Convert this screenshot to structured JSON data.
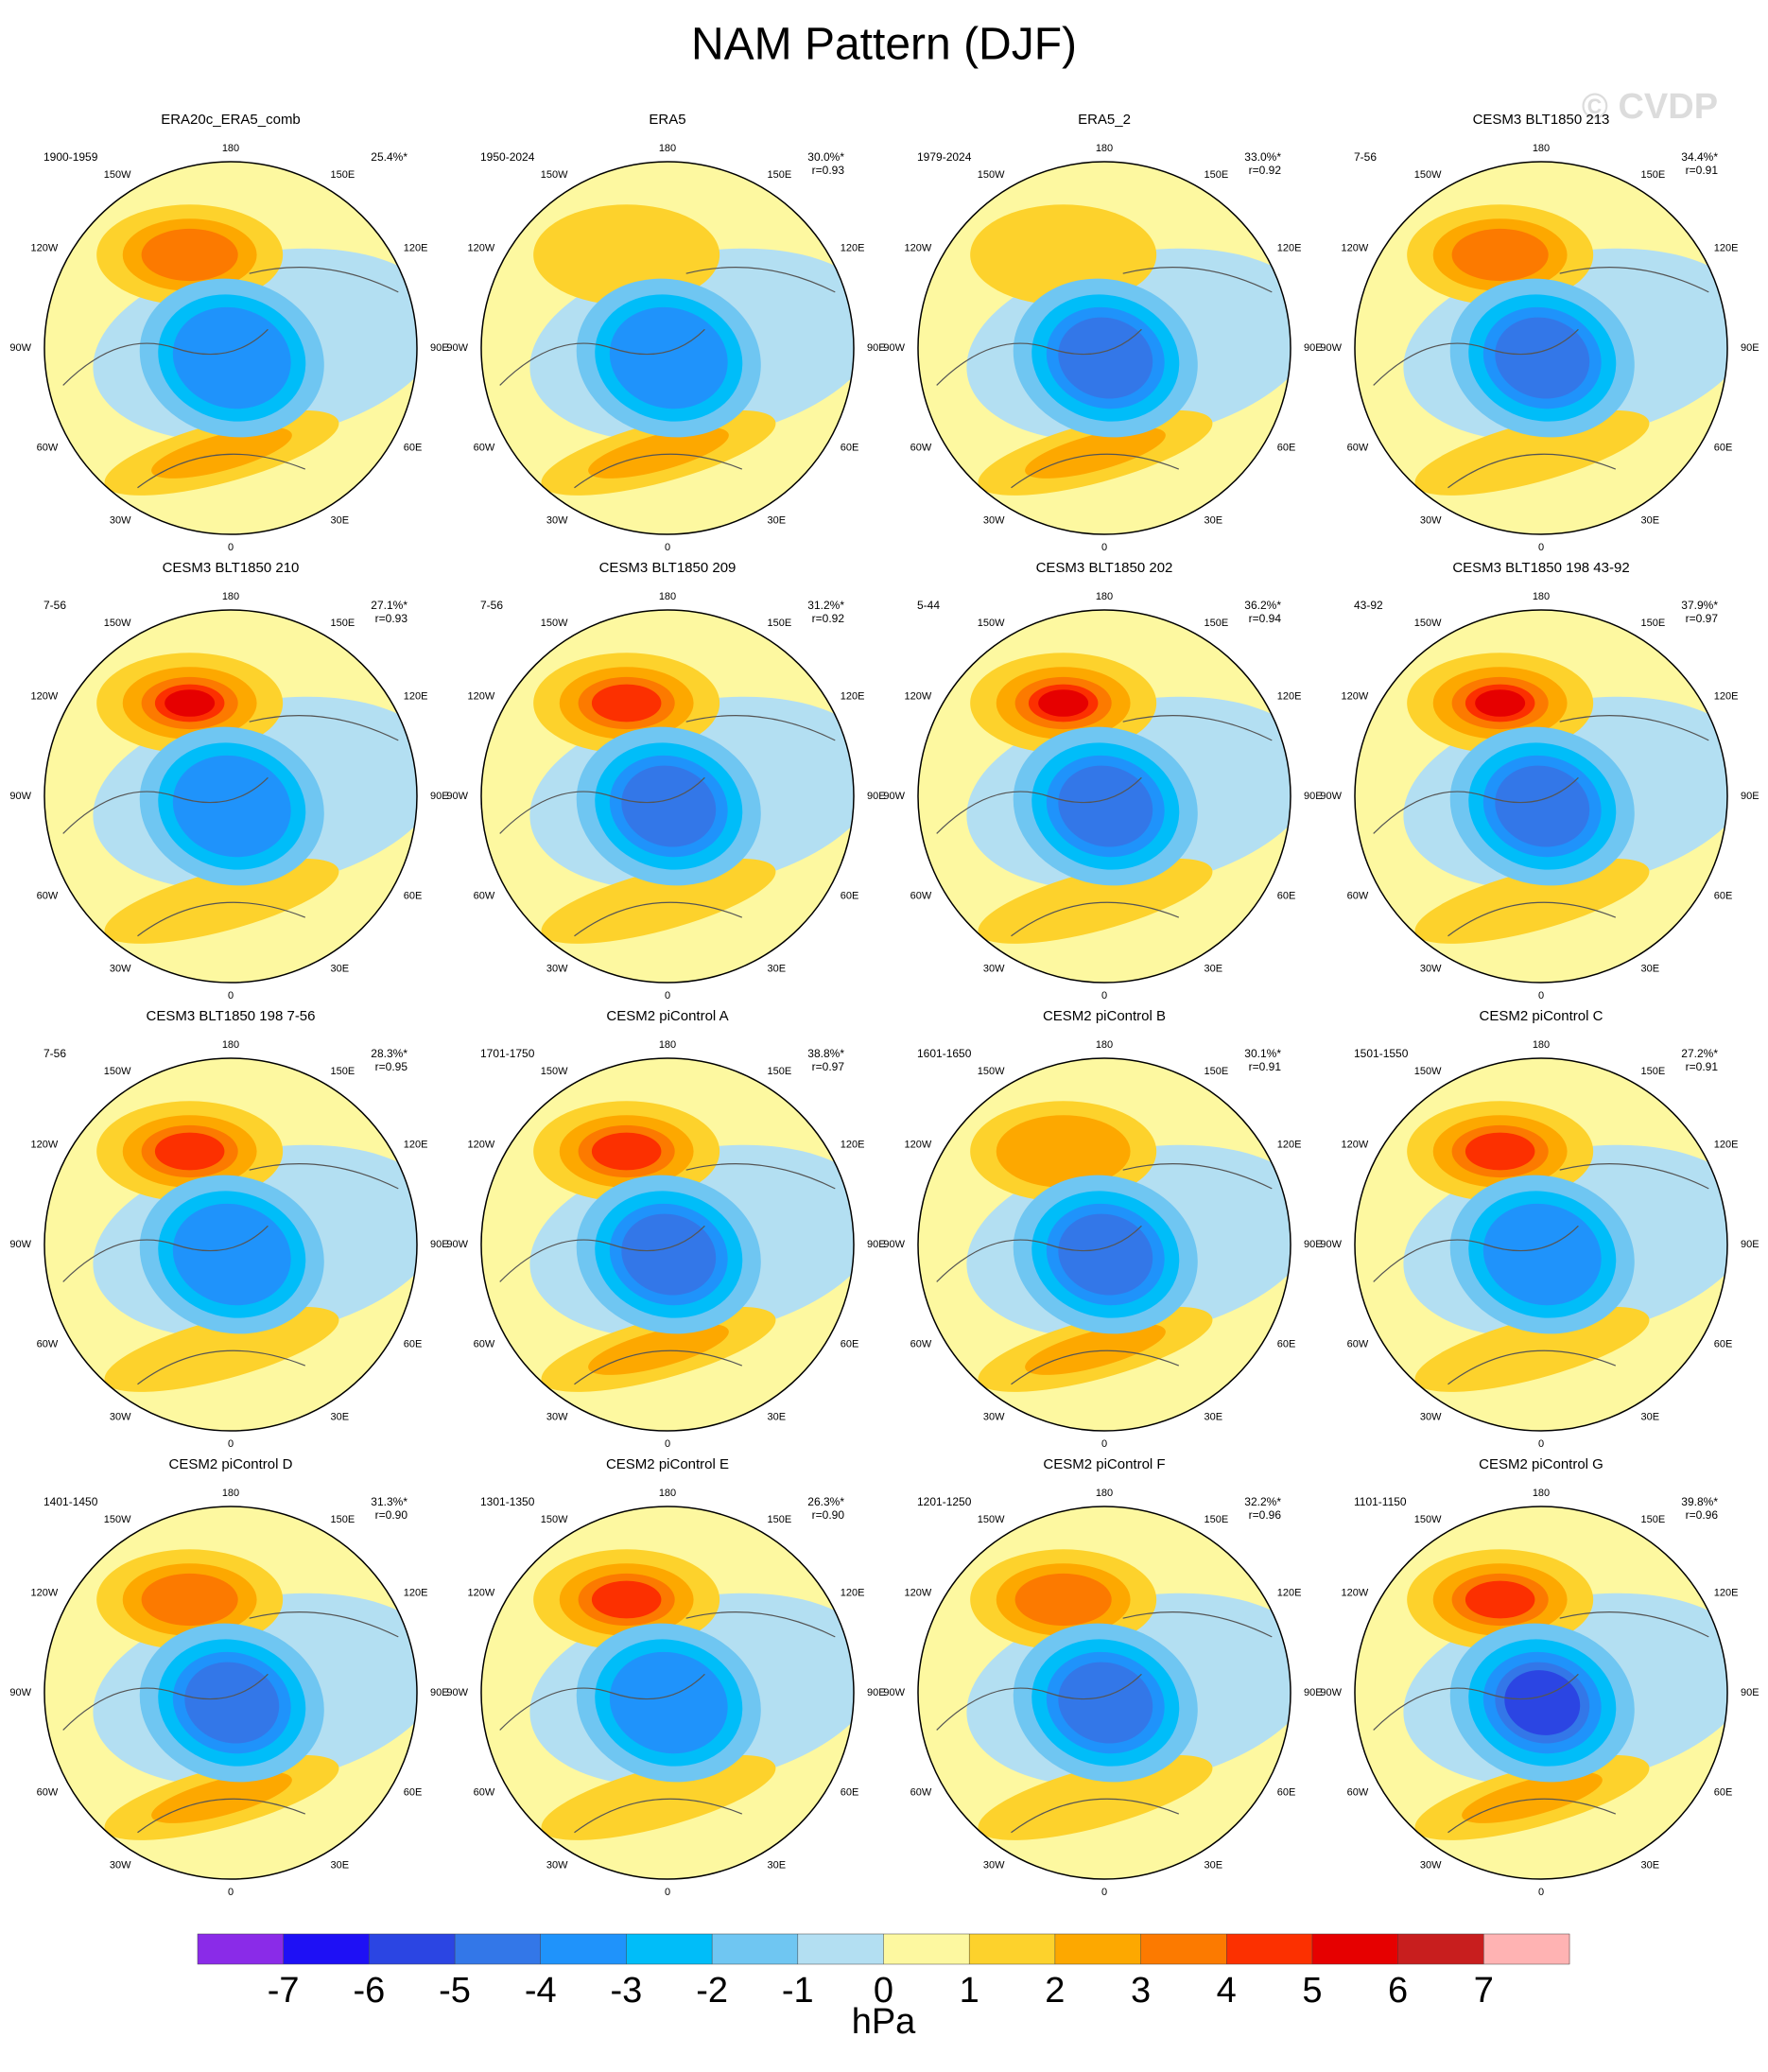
{
  "title": "NAM Pattern (DJF)",
  "watermark": "© CVDP",
  "lon_labels": [
    "180",
    "150E",
    "120E",
    "90E",
    "60E",
    "30E",
    "0",
    "30W",
    "60W",
    "90W",
    "120W",
    "150W"
  ],
  "panels": [
    {
      "title": "ERA20c_ERA5_comb",
      "period": "1900-1959",
      "pct": "25.4%*"
    },
    {
      "title": "ERA5",
      "period": "1950-2024",
      "pct": "30.0%*",
      "r": "r=0.93"
    },
    {
      "title": "ERA5_2",
      "period": "1979-2024",
      "pct": "33.0%*",
      "r": "r=0.92"
    },
    {
      "title": "CESM3 BLT1850 213",
      "period": "7-56",
      "pct": "34.4%*",
      "r": "r=0.91"
    },
    {
      "title": "CESM3 BLT1850 210",
      "period": "7-56",
      "pct": "27.1%*",
      "r": "r=0.93"
    },
    {
      "title": "CESM3 BLT1850 209",
      "period": "7-56",
      "pct": "31.2%*",
      "r": "r=0.92"
    },
    {
      "title": "CESM3 BLT1850 202",
      "period": "5-44",
      "pct": "36.2%*",
      "r": "r=0.94"
    },
    {
      "title": "CESM3 BLT1850 198 43-92",
      "period": "43-92",
      "pct": "37.9%*",
      "r": "r=0.97"
    },
    {
      "title": "CESM3 BLT1850 198 7-56",
      "period": "7-56",
      "pct": "28.3%*",
      "r": "r=0.95"
    },
    {
      "title": "CESM2 piControl A",
      "period": "1701-1750",
      "pct": "38.8%*",
      "r": "r=0.97"
    },
    {
      "title": "CESM2 piControl B",
      "period": "1601-1650",
      "pct": "30.1%*",
      "r": "r=0.91"
    },
    {
      "title": "CESM2 piControl C",
      "period": "1501-1550",
      "pct": "27.2%*",
      "r": "r=0.91"
    },
    {
      "title": "CESM2 piControl D",
      "period": "1401-1450",
      "pct": "31.3%*",
      "r": "r=0.90"
    },
    {
      "title": "CESM2 piControl E",
      "period": "1301-1350",
      "pct": "26.3%*",
      "r": "r=0.90"
    },
    {
      "title": "CESM2 piControl F",
      "period": "1201-1250",
      "pct": "32.2%*",
      "r": "r=0.96"
    },
    {
      "title": "CESM2 piControl G",
      "period": "1101-1150",
      "pct": "39.8%*",
      "r": "r=0.96"
    }
  ],
  "colorbar": {
    "ticks": [
      -7,
      -6,
      -5,
      -4,
      -3,
      -2,
      -1,
      0,
      1,
      2,
      3,
      4,
      5,
      6,
      7
    ],
    "colors": [
      "#8a2be8",
      "#1e10f5",
      "#2b45e3",
      "#3377e8",
      "#1f93fb",
      "#00bdf9",
      "#6fc6f2",
      "#b3dff2",
      "#fdf8a0",
      "#fdd22c",
      "#fda800",
      "#fc7a00",
      "#fc3000",
      "#e60000",
      "#c81e1e",
      "#ffb3b3"
    ],
    "label": "hPa"
  }
}
